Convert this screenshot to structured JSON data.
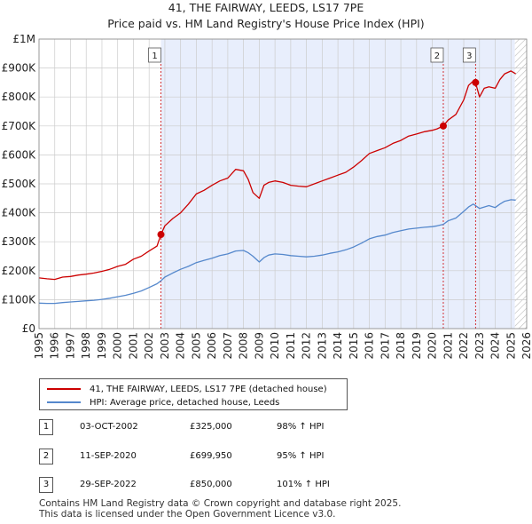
{
  "title": {
    "line1": "41, THE FAIRWAY, LEEDS, LS17 7PE",
    "line2": "Price paid vs. HM Land Registry's House Price Index (HPI)"
  },
  "colors": {
    "property": "#cc0000",
    "hpi": "#5588cc",
    "shade": "#e8eefc",
    "grid": "#cccccc",
    "vline": "#cc0000"
  },
  "legend": {
    "property_label": "41, THE FAIRWAY, LEEDS, LS17 7PE (detached house)",
    "hpi_label": "HPI: Average price, detached house, Leeds"
  },
  "sales": [
    {
      "num": "1",
      "date": "03-OCT-2002",
      "price": "£325,000",
      "hpi": "98% ↑ HPI"
    },
    {
      "num": "2",
      "date": "11-SEP-2020",
      "price": "£699,950",
      "hpi": "95% ↑ HPI"
    },
    {
      "num": "3",
      "date": "29-SEP-2022",
      "price": "£850,000",
      "hpi": "101% ↑ HPI"
    }
  ],
  "footer": {
    "line1": "Contains HM Land Registry data © Crown copyright and database right 2025.",
    "line2": "This data is licensed under the Open Government Licence v3.0."
  },
  "chart_data": {
    "type": "line",
    "title": "41, THE FAIRWAY, LEEDS, LS17 7PE — Price paid vs. HM Land Registry's House Price Index (HPI)",
    "xlim": [
      1995,
      2026
    ],
    "ylim": [
      0,
      1000000
    ],
    "x_ticks": [
      "1995",
      "1996",
      "1997",
      "1998",
      "1999",
      "2000",
      "2001",
      "2002",
      "2003",
      "2004",
      "2005",
      "2006",
      "2007",
      "2008",
      "2009",
      "2010",
      "2011",
      "2012",
      "2013",
      "2014",
      "2015",
      "2016",
      "2017",
      "2018",
      "2019",
      "2020",
      "2021",
      "2022",
      "2023",
      "2024",
      "2025",
      "2026"
    ],
    "y_ticks": [
      {
        "value": 0,
        "label": "£0"
      },
      {
        "value": 100000,
        "label": "£100K"
      },
      {
        "value": 200000,
        "label": "£200K"
      },
      {
        "value": 300000,
        "label": "£300K"
      },
      {
        "value": 400000,
        "label": "£400K"
      },
      {
        "value": 500000,
        "label": "£500K"
      },
      {
        "value": 600000,
        "label": "£600K"
      },
      {
        "value": 700000,
        "label": "£700K"
      },
      {
        "value": 800000,
        "label": "£800K"
      },
      {
        "value": 900000,
        "label": "£900K"
      },
      {
        "value": 1000000,
        "label": "£1M"
      }
    ],
    "shaded_range": [
      2002.75,
      2025.25
    ],
    "hatched_from": 2025.25,
    "markers": [
      {
        "label": "1",
        "x": 2002.75,
        "y": 325000
      },
      {
        "label": "2",
        "x": 2020.7,
        "y": 699950
      },
      {
        "label": "3",
        "x": 2022.75,
        "y": 850000
      }
    ],
    "series": [
      {
        "name": "41, THE FAIRWAY, LEEDS, LS17 7PE (detached house)",
        "x": [
          1995,
          1995.5,
          1996,
          1996.5,
          1997,
          1997.5,
          1998,
          1998.5,
          1999,
          1999.5,
          2000,
          2000.5,
          2001,
          2001.5,
          2002,
          2002.5,
          2002.75,
          2003,
          2003.5,
          2004,
          2004.5,
          2005,
          2005.5,
          2006,
          2006.5,
          2007,
          2007.5,
          2008,
          2008.3,
          2008.6,
          2009,
          2009.3,
          2009.6,
          2010,
          2010.5,
          2011,
          2011.5,
          2012,
          2012.5,
          2013,
          2013.5,
          2014,
          2014.5,
          2015,
          2015.5,
          2016,
          2016.5,
          2017,
          2017.5,
          2018,
          2018.5,
          2019,
          2019.5,
          2020,
          2020.3,
          2020.7,
          2021,
          2021.5,
          2022,
          2022.3,
          2022.6,
          2022.75,
          2023,
          2023.3,
          2023.6,
          2024,
          2024.3,
          2024.6,
          2025,
          2025.3
        ],
        "y": [
          175000,
          172000,
          170000,
          178000,
          180000,
          185000,
          188000,
          192000,
          198000,
          205000,
          215000,
          222000,
          240000,
          250000,
          268000,
          285000,
          325000,
          355000,
          380000,
          400000,
          430000,
          465000,
          478000,
          495000,
          510000,
          520000,
          550000,
          545000,
          515000,
          470000,
          450000,
          495000,
          505000,
          510000,
          505000,
          495000,
          492000,
          490000,
          500000,
          510000,
          520000,
          530000,
          540000,
          558000,
          580000,
          605000,
          615000,
          625000,
          640000,
          650000,
          665000,
          672000,
          680000,
          685000,
          690000,
          699950,
          720000,
          740000,
          790000,
          840000,
          855000,
          850000,
          800000,
          830000,
          835000,
          830000,
          860000,
          880000,
          890000,
          880000
        ]
      },
      {
        "name": "HPI: Average price, detached house, Leeds",
        "x": [
          1995,
          1995.5,
          1996,
          1996.5,
          1997,
          1997.5,
          1998,
          1998.5,
          1999,
          1999.5,
          2000,
          2000.5,
          2001,
          2001.5,
          2002,
          2002.5,
          2002.75,
          2003,
          2003.5,
          2004,
          2004.5,
          2005,
          2005.5,
          2006,
          2006.5,
          2007,
          2007.5,
          2008,
          2008.3,
          2008.6,
          2009,
          2009.3,
          2009.6,
          2010,
          2010.5,
          2011,
          2011.5,
          2012,
          2012.5,
          2013,
          2013.5,
          2014,
          2014.5,
          2015,
          2015.5,
          2016,
          2016.5,
          2017,
          2017.5,
          2018,
          2018.5,
          2019,
          2019.5,
          2020,
          2020.3,
          2020.7,
          2021,
          2021.5,
          2022,
          2022.3,
          2022.6,
          2022.75,
          2023,
          2023.3,
          2023.6,
          2024,
          2024.3,
          2024.6,
          2025,
          2025.3
        ],
        "y": [
          88000,
          87000,
          87000,
          90000,
          92000,
          94000,
          96000,
          98000,
          101000,
          105000,
          110000,
          115000,
          122000,
          130000,
          142000,
          155000,
          165000,
          178000,
          192000,
          205000,
          215000,
          228000,
          236000,
          243000,
          252000,
          258000,
          268000,
          270000,
          262000,
          250000,
          230000,
          245000,
          254000,
          258000,
          256000,
          252000,
          250000,
          248000,
          250000,
          254000,
          260000,
          265000,
          272000,
          282000,
          295000,
          310000,
          318000,
          323000,
          332000,
          338000,
          344000,
          347000,
          350000,
          352000,
          355000,
          360000,
          372000,
          382000,
          405000,
          420000,
          430000,
          425000,
          415000,
          420000,
          425000,
          418000,
          430000,
          440000,
          445000,
          444000
        ]
      }
    ]
  }
}
